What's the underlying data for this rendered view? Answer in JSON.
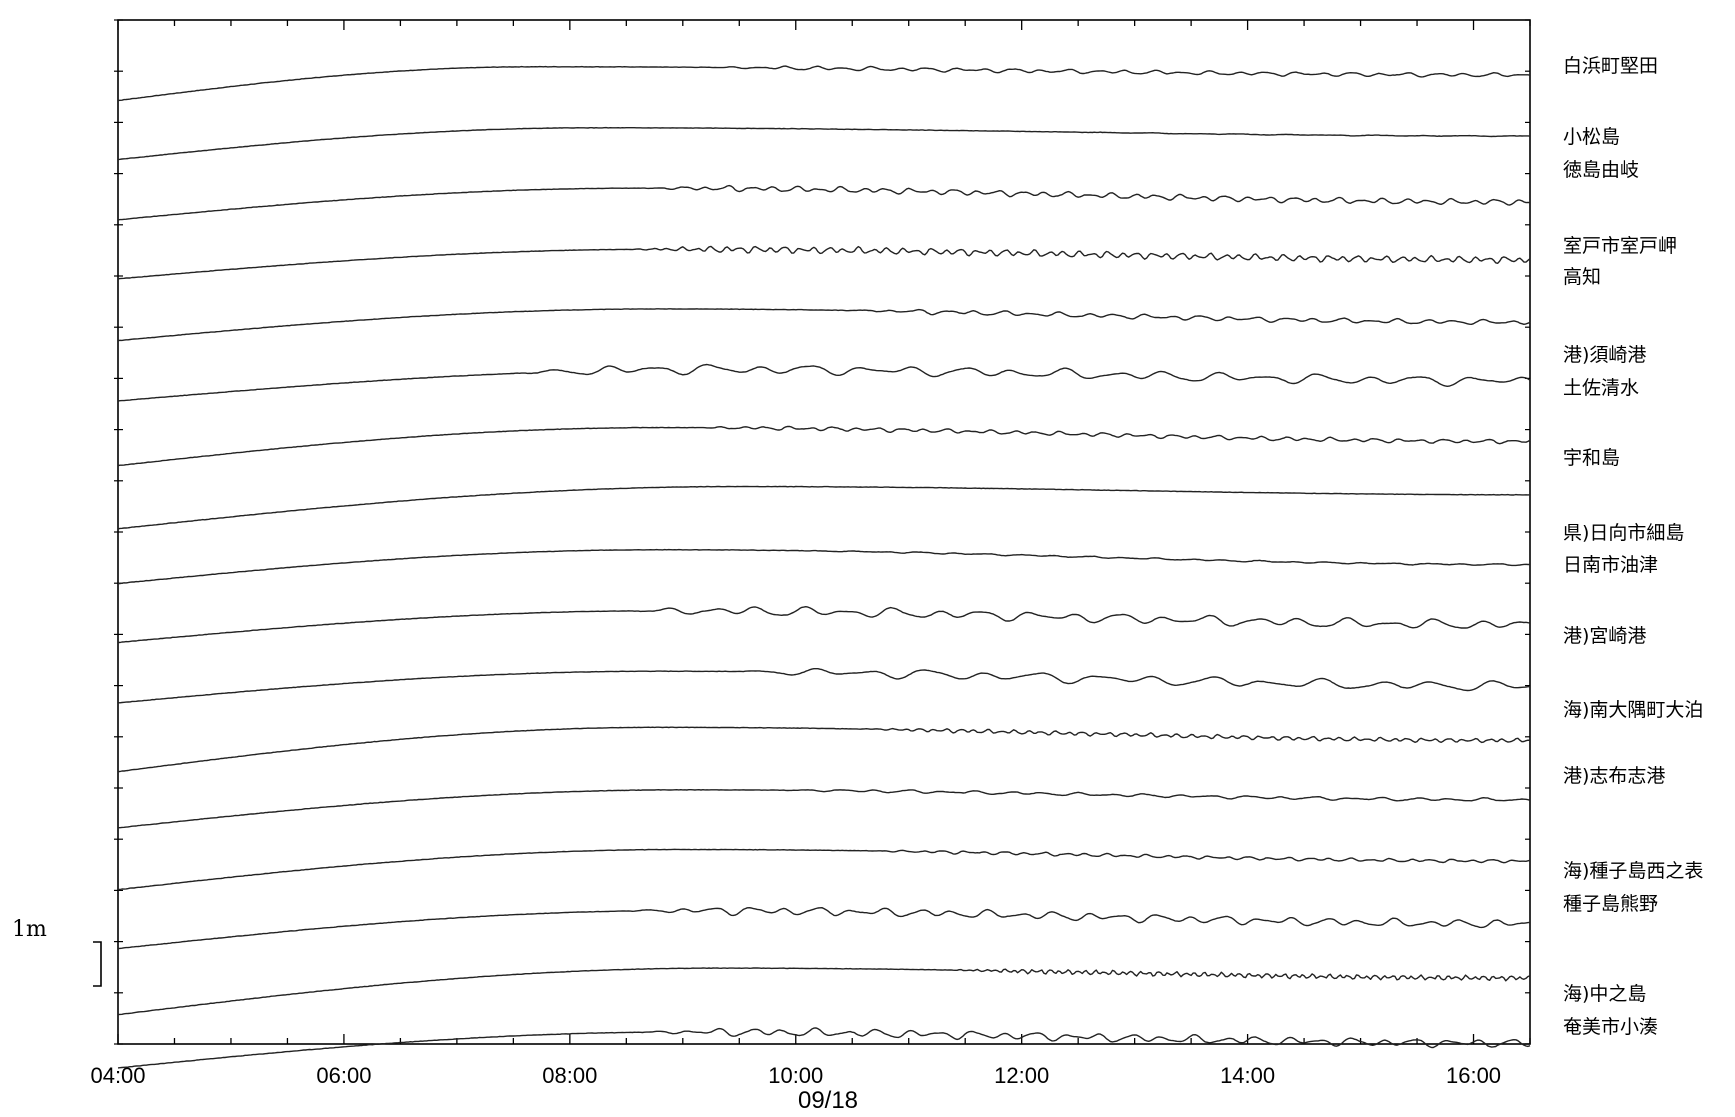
{
  "chart_data": {
    "type": "line",
    "title": "",
    "xlabel": "09/18",
    "ylabel": "",
    "x_range": [
      "04:00",
      "16:30"
    ],
    "x_ticks": [
      "04:00",
      "06:00",
      "08:00",
      "10:00",
      "12:00",
      "14:00",
      "16:00"
    ],
    "date_label": "09/18",
    "scale_bar_label": "1m",
    "scale_bar_value_m": 1,
    "grid": false,
    "series": [
      {
        "name": "白浜町堅田",
        "peak_time": 7.7,
        "drift": 0.32,
        "end": 0.25,
        "osc_amp": 0.05,
        "osc_period": 0.25,
        "osc_start": 9.2
      },
      {
        "name": "",
        "peak_time": 8.2,
        "drift": 0.3,
        "end": 0.25,
        "osc_amp": 0.01,
        "osc_period": 0.4,
        "osc_start": 12.0
      },
      {
        "name": "小松島",
        "peak_time": 8.6,
        "drift": 0.3,
        "end": 0.42,
        "osc_amp": 0.07,
        "osc_period": 0.2,
        "osc_start": 8.6
      },
      {
        "name": "徳島由岐",
        "peak_time": 8.8,
        "drift": 0.28,
        "end": 0.32,
        "osc_amp": 0.08,
        "osc_period": 0.13,
        "osc_start": 8.5
      },
      {
        "name": "室戸市室戸岬",
        "peak_time": 8.8,
        "drift": 0.3,
        "end": 0.4,
        "osc_amp": 0.06,
        "osc_period": 0.25,
        "osc_start": 10.4
      },
      {
        "name": "高知",
        "peak_time": 9.2,
        "drift": 0.3,
        "end": 0.35,
        "osc_amp": 0.12,
        "osc_period": 0.45,
        "osc_start": 7.5
      },
      {
        "name": "港)須崎港",
        "peak_time": 8.8,
        "drift": 0.36,
        "end": 0.42,
        "osc_amp": 0.05,
        "osc_period": 0.2,
        "osc_start": 9.0
      },
      {
        "name": "土佐清水",
        "peak_time": 9.5,
        "drift": 0.4,
        "end": 0.25,
        "osc_amp": 0.0,
        "osc_period": 0.5,
        "osc_start": 16.0
      },
      {
        "name": "宇和島",
        "peak_time": 8.8,
        "drift": 0.32,
        "end": 0.45,
        "osc_amp": 0.02,
        "osc_period": 0.3,
        "osc_start": 10.0
      },
      {
        "name": "県)日向市細島",
        "peak_time": 8.8,
        "drift": 0.3,
        "end": 0.42,
        "osc_amp": 0.12,
        "osc_period": 0.4,
        "osc_start": 8.5
      },
      {
        "name": "日南市油津",
        "peak_time": 8.8,
        "drift": 0.3,
        "end": 0.45,
        "osc_amp": 0.12,
        "osc_period": 0.5,
        "osc_start": 9.5
      },
      {
        "name": "港)宮崎港",
        "peak_time": 8.8,
        "drift": 0.42,
        "end": 0.4,
        "osc_amp": 0.05,
        "osc_period": 0.12,
        "osc_start": 10.5
      },
      {
        "name": "海)南大隅町大泊",
        "peak_time": 9.0,
        "drift": 0.36,
        "end": 0.3,
        "osc_amp": 0.04,
        "osc_period": 0.3,
        "osc_start": 9.8
      },
      {
        "name": "港)志布志港",
        "peak_time": 9.0,
        "drift": 0.38,
        "end": 0.35,
        "osc_amp": 0.04,
        "osc_period": 0.18,
        "osc_start": 10.5
      },
      {
        "name": "海)種子島西之表",
        "peak_time": 9.0,
        "drift": 0.36,
        "end": 0.4,
        "osc_amp": 0.1,
        "osc_period": 0.3,
        "osc_start": 8.5
      },
      {
        "name": "種子島熊野",
        "peak_time": 9.3,
        "drift": 0.44,
        "end": 0.3,
        "osc_amp": 0.06,
        "osc_period": 0.08,
        "osc_start": 11.3
      },
      {
        "name": "海)中之島",
        "peak_time": 9.0,
        "drift": 0.34,
        "end": 0.34,
        "osc_amp": 0.1,
        "osc_period": 0.28,
        "osc_start": 8.6
      }
    ],
    "right_labels": [
      "白浜町堅田",
      "小松島",
      "徳島由岐",
      "室戸市室戸岬",
      "高知",
      "港)須崎港",
      "土佐清水",
      "宇和島",
      "県)日向市細島",
      "日南市油津",
      "港)宮崎港",
      "海)南大隅町大泊",
      "港)志布志港",
      "海)種子島西之表",
      "種子島熊野",
      "海)中之島",
      "奄美市小湊"
    ]
  }
}
